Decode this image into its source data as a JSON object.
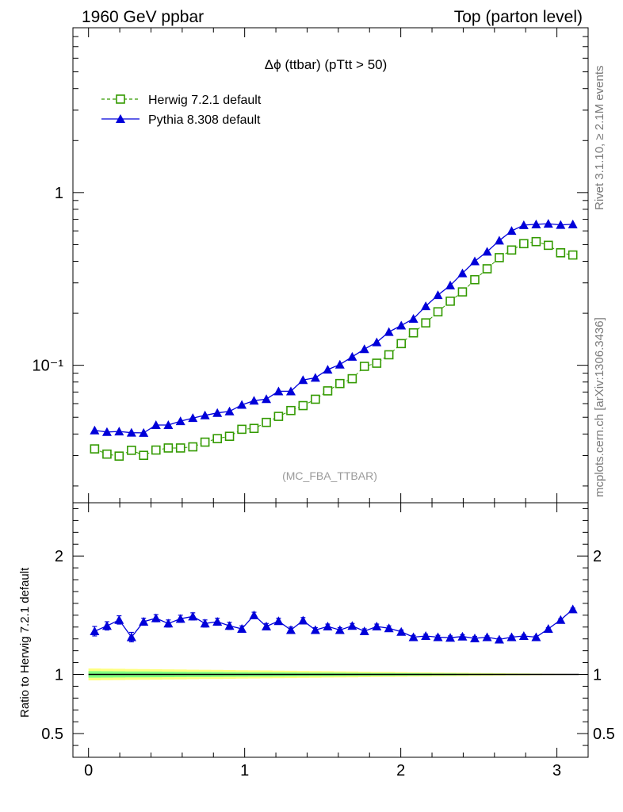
{
  "header": {
    "left": "1960 GeV ppbar",
    "right": "Top (parton level)"
  },
  "side_labels": {
    "rivet": "Rivet 3.1.10, ≥ 2.1M events",
    "mcplots": "mcplots.cern.ch [arXiv:1306.3436]"
  },
  "chart_data": [
    {
      "type": "line",
      "panel": "main",
      "title": "Δϕ (ttbar) (pTtt > 50)",
      "watermark": "(MC_FBA_TTBAR)",
      "yscale": "log",
      "ylim": [
        0.016,
        9.0
      ],
      "xlim": [
        -0.1,
        3.2
      ],
      "yticklabels": {
        "1": "1",
        "0.1": "10⁻¹"
      },
      "legend_placement": "top-left",
      "x": [
        0.039,
        0.118,
        0.196,
        0.275,
        0.353,
        0.432,
        0.511,
        0.589,
        0.668,
        0.746,
        0.825,
        0.903,
        0.982,
        1.06,
        1.139,
        1.217,
        1.296,
        1.374,
        1.453,
        1.532,
        1.61,
        1.689,
        1.767,
        1.846,
        1.924,
        2.003,
        2.081,
        2.16,
        2.238,
        2.317,
        2.395,
        2.474,
        2.553,
        2.631,
        2.71,
        2.788,
        2.867,
        2.945,
        3.024,
        3.102
      ],
      "series": [
        {
          "name": "Herwig 7.2.1 default",
          "color": "#339a00",
          "style": "dashed-open-square",
          "values": [
            0.0328,
            0.0306,
            0.0298,
            0.0322,
            0.0301,
            0.0323,
            0.0332,
            0.0332,
            0.0337,
            0.0359,
            0.0376,
            0.0388,
            0.0426,
            0.0431,
            0.0467,
            0.0506,
            0.0547,
            0.0584,
            0.0636,
            0.0711,
            0.0784,
            0.0836,
            0.0986,
            0.1028,
            0.115,
            0.1335,
            0.1541,
            0.176,
            0.204,
            0.235,
            0.266,
            0.313,
            0.362,
            0.42,
            0.465,
            0.506,
            0.52,
            0.495,
            0.448,
            0.435
          ]
        },
        {
          "name": "Pythia 8.308 default",
          "color": "#0000d9",
          "style": "solid-filled-triangle",
          "values": [
            0.042,
            0.0411,
            0.0414,
            0.0407,
            0.0406,
            0.0451,
            0.0451,
            0.0475,
            0.0495,
            0.0513,
            0.053,
            0.0541,
            0.059,
            0.0624,
            0.0637,
            0.0707,
            0.0707,
            0.0822,
            0.0847,
            0.0944,
            0.101,
            0.112,
            0.124,
            0.136,
            0.156,
            0.17,
            0.186,
            0.22,
            0.255,
            0.29,
            0.341,
            0.4,
            0.455,
            0.527,
            0.6,
            0.648,
            0.655,
            0.66,
            0.65,
            0.655
          ]
        }
      ]
    },
    {
      "type": "line",
      "panel": "ratio",
      "ylabel": "Ratio to Herwig 7.2.1 default",
      "ylim": [
        0.3,
        2.45
      ],
      "xlim": [
        -0.1,
        3.2
      ],
      "yticks": [
        0.5,
        1,
        2
      ],
      "yticklabels": [
        "0.5",
        "1",
        "2"
      ],
      "xticks": [
        0,
        1,
        2,
        3
      ],
      "xticklabels": [
        "0",
        "1",
        "2",
        "3"
      ],
      "reference_line": 1,
      "band_color_outer": "#ffff80",
      "band_color_inner": "#80ff80",
      "band_half_width_start": 0.05,
      "band_half_width_end": 0.003,
      "series": [
        {
          "name": "Pythia 8.308 default",
          "color": "#0000d9",
          "values": [
            1.365,
            1.41,
            1.46,
            1.315,
            1.445,
            1.475,
            1.43,
            1.47,
            1.49,
            1.43,
            1.445,
            1.41,
            1.385,
            1.5,
            1.405,
            1.45,
            1.375,
            1.455,
            1.375,
            1.405,
            1.375,
            1.41,
            1.365,
            1.405,
            1.39,
            1.36,
            1.315,
            1.325,
            1.315,
            1.31,
            1.32,
            1.305,
            1.315,
            1.295,
            1.315,
            1.325,
            1.315,
            1.385,
            1.46,
            1.55
          ],
          "errors": [
            0.04,
            0.035,
            0.035,
            0.04,
            0.03,
            0.03,
            0.03,
            0.03,
            0.03,
            0.03,
            0.03,
            0.03,
            0.025,
            0.025,
            0.025,
            0.025,
            0.025,
            0.025,
            0.02,
            0.02,
            0.02,
            0.02,
            0.02,
            0.02,
            0.02,
            0.015,
            0.015,
            0.015,
            0.015,
            0.015,
            0.015,
            0.015,
            0.01,
            0.01,
            0.01,
            0.01,
            0.01,
            0.01,
            0.01,
            0.01
          ]
        }
      ]
    }
  ]
}
